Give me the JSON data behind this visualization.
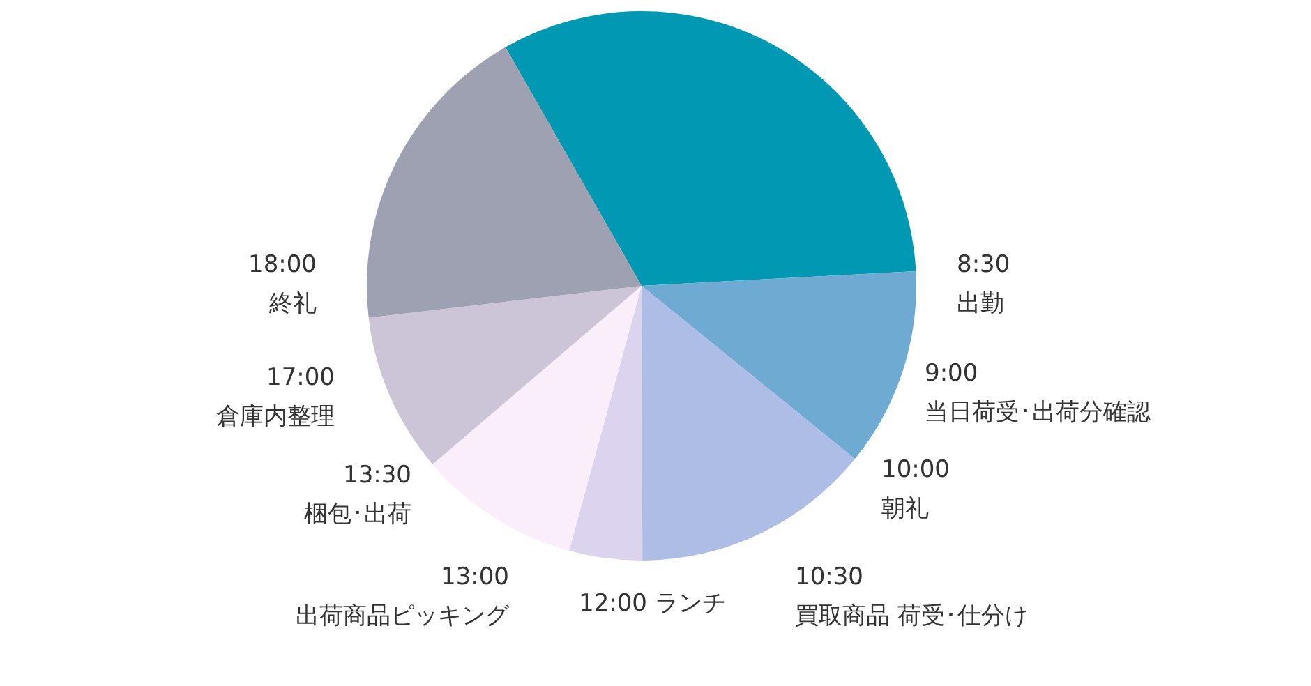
{
  "chart_data": {
    "type": "pie",
    "categories": [
      null,
      null,
      null,
      null,
      null,
      null,
      null
    ],
    "values": [
      32.4,
      11.7,
      14.1,
      4.3,
      9.5,
      9.4,
      18.6
    ],
    "colors": [
      "#0098b3",
      "#6faad3",
      "#adbde6",
      "#dcd3ef",
      "#fbeefb",
      "#cbc5d7",
      "#9ea1b1"
    ],
    "annotations": [
      "8:30\n出勤",
      "9:00\n当日荷受･出荷分確認",
      "10:00\n朝礼",
      "10:30\n買取商品 荷受･仕分け",
      "12:00 ランチ",
      "13:00\n出荷商品ピッキング",
      "13:30\n梱包･出荷",
      "17:00\n倉庫内整理",
      "18:00\n終礼"
    ]
  }
}
